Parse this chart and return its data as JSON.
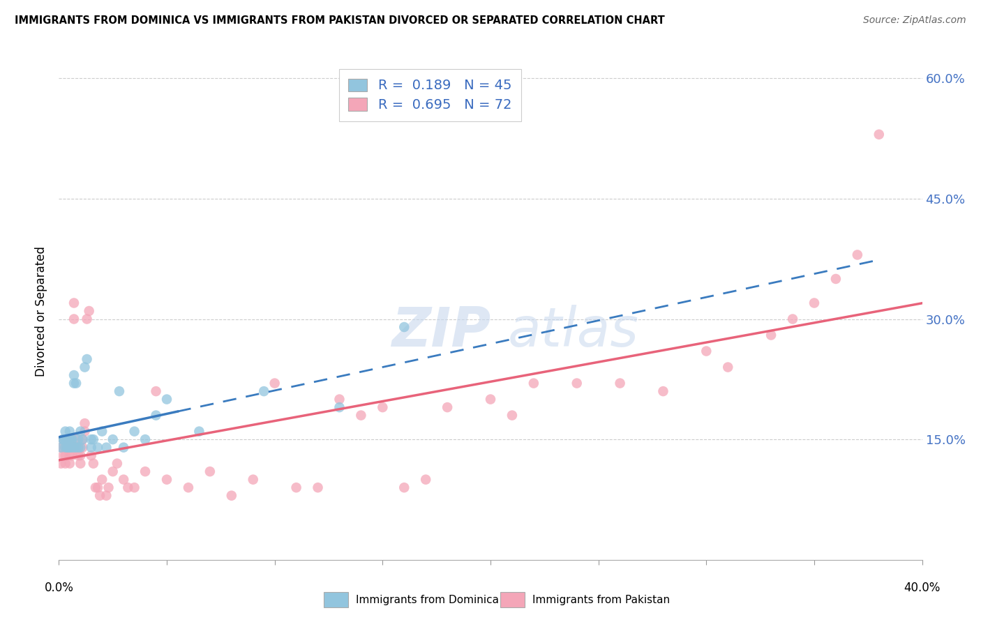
{
  "title": "IMMIGRANTS FROM DOMINICA VS IMMIGRANTS FROM PAKISTAN DIVORCED OR SEPARATED CORRELATION CHART",
  "source": "Source: ZipAtlas.com",
  "ylabel": "Divorced or Separated",
  "legend_label1": "Immigrants from Dominica",
  "legend_label2": "Immigrants from Pakistan",
  "R1": "0.189",
  "N1": "45",
  "R2": "0.695",
  "N2": "72",
  "color_dominica": "#92c5de",
  "color_pakistan": "#f4a6b8",
  "color_line_dominica": "#3a7bbf",
  "color_line_pakistan": "#e8637a",
  "xmin": 0.0,
  "xmax": 0.4,
  "ymin": 0.0,
  "ymax": 0.62,
  "ytick_vals": [
    0.15,
    0.3,
    0.45,
    0.6
  ],
  "ytick_labels": [
    "15.0%",
    "30.0%",
    "45.0%",
    "60.0%"
  ],
  "dominica_x": [
    0.001,
    0.002,
    0.002,
    0.003,
    0.003,
    0.003,
    0.004,
    0.004,
    0.004,
    0.005,
    0.005,
    0.005,
    0.005,
    0.006,
    0.006,
    0.006,
    0.007,
    0.007,
    0.007,
    0.008,
    0.008,
    0.009,
    0.009,
    0.01,
    0.01,
    0.011,
    0.012,
    0.013,
    0.015,
    0.015,
    0.016,
    0.018,
    0.02,
    0.022,
    0.025,
    0.028,
    0.03,
    0.035,
    0.04,
    0.045,
    0.05,
    0.065,
    0.095,
    0.13,
    0.16
  ],
  "dominica_y": [
    0.14,
    0.15,
    0.15,
    0.14,
    0.15,
    0.16,
    0.14,
    0.15,
    0.14,
    0.14,
    0.15,
    0.14,
    0.16,
    0.14,
    0.15,
    0.15,
    0.22,
    0.23,
    0.14,
    0.22,
    0.14,
    0.14,
    0.15,
    0.14,
    0.16,
    0.15,
    0.24,
    0.25,
    0.14,
    0.15,
    0.15,
    0.14,
    0.16,
    0.14,
    0.15,
    0.21,
    0.14,
    0.16,
    0.15,
    0.18,
    0.2,
    0.16,
    0.21,
    0.19,
    0.29
  ],
  "pakistan_x": [
    0.001,
    0.001,
    0.002,
    0.002,
    0.003,
    0.003,
    0.003,
    0.004,
    0.004,
    0.005,
    0.005,
    0.005,
    0.006,
    0.006,
    0.006,
    0.007,
    0.007,
    0.008,
    0.008,
    0.009,
    0.009,
    0.01,
    0.01,
    0.011,
    0.011,
    0.012,
    0.012,
    0.013,
    0.014,
    0.015,
    0.016,
    0.017,
    0.018,
    0.019,
    0.02,
    0.022,
    0.023,
    0.025,
    0.027,
    0.03,
    0.032,
    0.035,
    0.04,
    0.045,
    0.05,
    0.06,
    0.07,
    0.08,
    0.09,
    0.1,
    0.11,
    0.12,
    0.13,
    0.14,
    0.15,
    0.16,
    0.17,
    0.18,
    0.2,
    0.21,
    0.22,
    0.24,
    0.26,
    0.28,
    0.3,
    0.31,
    0.33,
    0.34,
    0.35,
    0.36,
    0.37,
    0.38
  ],
  "pakistan_y": [
    0.14,
    0.12,
    0.13,
    0.15,
    0.12,
    0.14,
    0.13,
    0.15,
    0.14,
    0.13,
    0.14,
    0.12,
    0.15,
    0.13,
    0.14,
    0.32,
    0.3,
    0.14,
    0.15,
    0.13,
    0.14,
    0.12,
    0.13,
    0.15,
    0.14,
    0.17,
    0.16,
    0.3,
    0.31,
    0.13,
    0.12,
    0.09,
    0.09,
    0.08,
    0.1,
    0.08,
    0.09,
    0.11,
    0.12,
    0.1,
    0.09,
    0.09,
    0.11,
    0.21,
    0.1,
    0.09,
    0.11,
    0.08,
    0.1,
    0.22,
    0.09,
    0.09,
    0.2,
    0.18,
    0.19,
    0.09,
    0.1,
    0.19,
    0.2,
    0.18,
    0.22,
    0.22,
    0.22,
    0.21,
    0.26,
    0.24,
    0.28,
    0.3,
    0.32,
    0.35,
    0.38,
    0.53
  ]
}
